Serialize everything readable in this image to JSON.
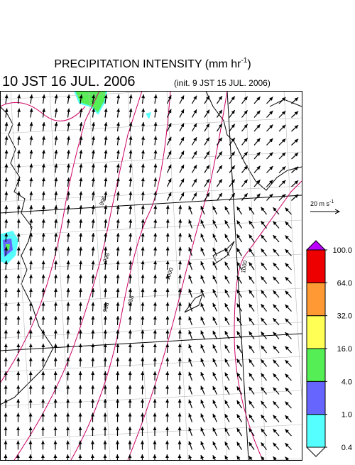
{
  "header": {
    "title": {
      "main": "PRECIPITATION INTENSITY (mm hr",
      "exponent": "-1",
      "close": ")"
    },
    "valid_time": "10 JST 16 JUL. 2006",
    "init": "(init. 9 JST 15 JUL. 2006)"
  },
  "wind_scale": {
    "label": "20 m s",
    "exponent": "-1"
  },
  "colorbar": {
    "ticks": [
      0.4,
      {
        "value": 1,
        "label": "1.0"
      },
      {
        "value": 4,
        "label": "4.0"
      },
      {
        "value": 16,
        "label": "16.0"
      },
      {
        "value": 32,
        "label": "32.0"
      },
      {
        "value": 64,
        "label": "64.0"
      },
      {
        "value": 100,
        "label": "100.0"
      }
    ],
    "colors": [
      "#55ffff",
      "#6666ff",
      "#55ee55",
      "#ffff55",
      "#ff9933",
      "#ee0000"
    ],
    "under_color": "#ffffff",
    "over_color": "#bb00ff"
  },
  "isobar_labels": [
    "996",
    "998",
    "998",
    "998",
    "1000",
    "1000"
  ]
}
